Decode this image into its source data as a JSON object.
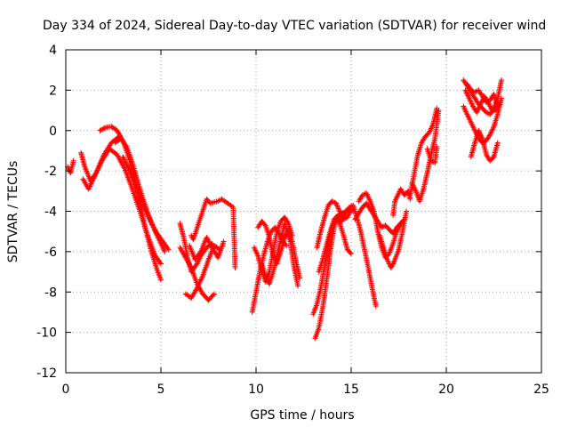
{
  "chart_data": {
    "type": "scatter",
    "title": "Day 334 of 2024, Sidereal Day-to-day VTEC variation (SDTVAR) for receiver wind",
    "xlabel": "GPS time / hours",
    "ylabel": "SDTVAR / TECUs",
    "xlim": [
      0,
      25
    ],
    "ylim": [
      -12,
      4
    ],
    "xticks": [
      "0",
      "5",
      "10",
      "15",
      "20",
      "25"
    ],
    "yticks": [
      "4",
      "2",
      "0",
      "-2",
      "-4",
      "-6",
      "-8",
      "-10",
      "-12"
    ],
    "grid": true,
    "marker": "+",
    "color": "#ff0000",
    "segments": [
      {
        "x": [
          0.1,
          0.25,
          0.4
        ],
        "y": [
          -1.8,
          -2.1,
          -1.5
        ]
      },
      {
        "x": [
          0.8,
          1.0,
          1.3,
          1.6,
          2.0,
          2.4,
          2.8
        ],
        "y": [
          -1.1,
          -1.8,
          -2.5,
          -2.1,
          -1.2,
          -0.6,
          -0.3
        ]
      },
      {
        "x": [
          0.9,
          1.2,
          1.5,
          1.9,
          2.3,
          2.7,
          3.1,
          3.5,
          3.9,
          4.3,
          4.7,
          5.0
        ],
        "y": [
          -2.4,
          -2.9,
          -2.3,
          -1.5,
          -0.9,
          -1.2,
          -1.9,
          -2.9,
          -4.0,
          -5.2,
          -6.2,
          -6.6
        ]
      },
      {
        "x": [
          1.8,
          2.1,
          2.4,
          2.7,
          3.0,
          3.3,
          3.6,
          3.9,
          4.2,
          4.5,
          4.8,
          5.0
        ],
        "y": [
          0.0,
          0.15,
          0.2,
          0.0,
          -0.5,
          -1.3,
          -2.3,
          -3.6,
          -4.9,
          -6.0,
          -6.9,
          -7.4
        ]
      },
      {
        "x": [
          2.6,
          2.9,
          3.2,
          3.5,
          3.8,
          4.1,
          4.4,
          4.7,
          5.0,
          5.2
        ],
        "y": [
          -0.6,
          -0.4,
          -0.8,
          -1.6,
          -2.6,
          -3.5,
          -4.3,
          -5.0,
          -5.6,
          -6.0
        ]
      },
      {
        "x": [
          3.0,
          3.3,
          3.6,
          3.9,
          4.2,
          4.5,
          4.8,
          5.1,
          5.4
        ],
        "y": [
          -1.3,
          -1.9,
          -2.6,
          -3.3,
          -4.0,
          -4.6,
          -5.1,
          -5.5,
          -5.9
        ]
      },
      {
        "x": [
          6.0,
          6.2,
          6.4,
          6.6,
          6.9,
          7.1,
          7.4,
          7.7
        ],
        "y": [
          -4.6,
          -5.3,
          -6.3,
          -7.0,
          -6.6,
          -6.2,
          -5.8,
          -5.6
        ]
      },
      {
        "x": [
          6.0,
          6.3,
          6.6,
          6.9,
          7.2,
          7.5,
          7.8
        ],
        "y": [
          -5.8,
          -6.3,
          -6.8,
          -7.6,
          -8.1,
          -8.4,
          -8.1
        ]
      },
      {
        "x": [
          6.3,
          6.6,
          6.9,
          7.2,
          7.5,
          7.8,
          8.1
        ],
        "y": [
          -8.1,
          -8.3,
          -7.8,
          -7.2,
          -6.4,
          -5.7,
          -5.9
        ]
      },
      {
        "x": [
          6.5,
          6.8,
          7.1,
          7.4,
          7.7,
          8.0,
          8.3
        ],
        "y": [
          -5.7,
          -6.4,
          -6.0,
          -5.3,
          -5.8,
          -6.3,
          -5.5
        ]
      },
      {
        "x": [
          6.6,
          6.7,
          7.4,
          7.6,
          8.0,
          8.2,
          8.8,
          8.9
        ],
        "y": [
          -5.2,
          -5.4,
          -3.4,
          -3.6,
          -3.5,
          -3.4,
          -3.8,
          -6.8
        ]
      },
      {
        "x": [
          9.8,
          10.0,
          10.2,
          10.4,
          10.6,
          10.8,
          11.0,
          11.2,
          11.4,
          11.6
        ],
        "y": [
          -9.0,
          -8.0,
          -7.0,
          -6.2,
          -5.5,
          -5.0,
          -4.8,
          -5.1,
          -5.5,
          -5.7
        ]
      },
      {
        "x": [
          9.9,
          10.1,
          10.3,
          10.5,
          10.7,
          10.9,
          11.1,
          11.3,
          11.5,
          11.7,
          11.9
        ],
        "y": [
          -5.8,
          -6.2,
          -6.9,
          -7.5,
          -7.0,
          -6.0,
          -5.0,
          -4.5,
          -4.3,
          -4.6,
          -5.2
        ]
      },
      {
        "x": [
          10.1,
          10.3,
          10.5,
          10.7,
          10.9,
          11.1,
          11.3,
          11.5,
          11.7,
          11.9,
          12.1,
          12.3
        ],
        "y": [
          -4.8,
          -4.5,
          -4.7,
          -5.3,
          -6.2,
          -6.6,
          -6.0,
          -5.3,
          -4.9,
          -5.5,
          -6.5,
          -7.3
        ]
      },
      {
        "x": [
          10.3,
          10.5,
          10.7,
          10.9,
          11.2,
          11.5,
          11.8,
          12.0,
          12.2
        ],
        "y": [
          -6.6,
          -7.2,
          -7.6,
          -7.0,
          -5.8,
          -4.6,
          -5.5,
          -6.8,
          -7.7
        ]
      },
      {
        "x": [
          13.1,
          13.3,
          13.5,
          13.7,
          13.9,
          14.1,
          14.3,
          14.5,
          14.7,
          14.9,
          15.1
        ],
        "y": [
          -10.3,
          -9.8,
          -8.8,
          -7.5,
          -6.0,
          -4.8,
          -4.2,
          -4.1,
          -4.0,
          -3.9,
          -4.0
        ]
      },
      {
        "x": [
          13.0,
          13.2,
          13.4,
          13.6,
          13.8,
          14.0,
          14.2,
          14.4,
          14.6,
          14.8,
          15.0
        ],
        "y": [
          -9.1,
          -8.6,
          -7.8,
          -6.7,
          -5.6,
          -4.8,
          -4.4,
          -4.6,
          -5.2,
          -5.9,
          -6.1
        ]
      },
      {
        "x": [
          13.2,
          13.4,
          13.6,
          13.8,
          14.0,
          14.2,
          14.4,
          14.6,
          14.8,
          15.0
        ],
        "y": [
          -5.8,
          -5.0,
          -4.3,
          -3.7,
          -3.5,
          -3.6,
          -4.0,
          -4.4,
          -4.3,
          -3.9
        ]
      },
      {
        "x": [
          13.3,
          13.5,
          13.7,
          13.9,
          14.1,
          14.3,
          14.5,
          14.7,
          14.9,
          15.1,
          15.3,
          15.5,
          15.7,
          15.9,
          16.1,
          16.3
        ],
        "y": [
          -7.0,
          -6.4,
          -5.7,
          -5.0,
          -4.4,
          -4.2,
          -4.5,
          -4.1,
          -3.8,
          -3.7,
          -4.3,
          -5.0,
          -5.9,
          -6.8,
          -7.8,
          -8.7
        ]
      },
      {
        "x": [
          15.2,
          15.4,
          15.6,
          15.8,
          16.0,
          16.2,
          16.4,
          16.6,
          16.8,
          17.0,
          17.2,
          17.4,
          17.6,
          17.8
        ],
        "y": [
          -4.4,
          -4.1,
          -3.8,
          -3.6,
          -3.9,
          -4.2,
          -4.5,
          -4.8,
          -4.7,
          -4.9,
          -5.1,
          -4.8,
          -4.6,
          -4.4
        ]
      },
      {
        "x": [
          15.4,
          15.6,
          15.8,
          16.0,
          16.2,
          16.4,
          16.6,
          16.8,
          17.0,
          17.2,
          17.4,
          17.6
        ],
        "y": [
          -3.5,
          -3.2,
          -3.1,
          -3.5,
          -4.0,
          -5.0,
          -5.8,
          -6.3,
          -6.1,
          -5.6,
          -5.0,
          -4.6
        ]
      },
      {
        "x": [
          16.5,
          16.7,
          16.9,
          17.1,
          17.3,
          17.5,
          17.7,
          17.9
        ],
        "y": [
          -5.2,
          -5.8,
          -6.4,
          -6.8,
          -6.4,
          -5.9,
          -5.0,
          -4.0
        ]
      },
      {
        "x": [
          17.2,
          17.3,
          17.6,
          17.8,
          18.0,
          18.1
        ],
        "y": [
          -4.2,
          -3.5,
          -2.9,
          -3.2,
          -3.0,
          -3.4
        ]
      },
      {
        "x": [
          18.1,
          18.3,
          18.5,
          18.7,
          18.9,
          19.1,
          19.3,
          19.5
        ],
        "y": [
          -3.2,
          -2.2,
          -1.2,
          -0.6,
          -0.3,
          -0.1,
          0.3,
          1.1
        ]
      },
      {
        "x": [
          18.2,
          18.4,
          18.6,
          18.8,
          19.0,
          19.2,
          19.4,
          19.6
        ],
        "y": [
          -2.6,
          -3.0,
          -3.5,
          -2.9,
          -2.1,
          -1.2,
          -0.4,
          1.0
        ]
      },
      {
        "x": [
          19.0,
          19.2,
          19.4,
          19.5
        ],
        "y": [
          -0.9,
          -1.5,
          -1.6,
          -0.8
        ]
      },
      {
        "x": [
          20.9,
          21.1,
          21.3,
          21.5,
          21.7,
          21.9,
          22.1,
          22.3,
          22.5,
          22.7,
          22.9
        ],
        "y": [
          2.5,
          2.2,
          1.9,
          1.6,
          1.3,
          1.1,
          0.9,
          0.8,
          1.1,
          1.6,
          2.5
        ]
      },
      {
        "x": [
          20.9,
          21.1,
          21.3,
          21.5,
          21.7,
          21.9,
          22.1,
          22.3,
          22.5,
          22.7,
          22.9
        ],
        "y": [
          1.2,
          0.8,
          0.4,
          0.0,
          -0.4,
          -0.6,
          -0.5,
          -0.2,
          0.2,
          0.8,
          1.6
        ]
      },
      {
        "x": [
          21.0,
          21.2,
          21.4,
          21.6,
          21.8,
          22.0,
          22.2,
          22.4,
          22.6,
          22.8
        ],
        "y": [
          2.0,
          1.6,
          1.2,
          0.9,
          1.3,
          1.7,
          1.4,
          1.0,
          1.0,
          1.3
        ]
      },
      {
        "x": [
          21.3,
          21.5,
          21.7,
          21.9,
          22.1,
          22.3,
          22.5,
          22.7
        ],
        "y": [
          -1.3,
          -0.6,
          0.0,
          -0.4,
          -1.2,
          -1.5,
          -1.3,
          -0.6
        ]
      },
      {
        "x": [
          21.1,
          21.3,
          21.5,
          21.7,
          21.9,
          22.1,
          22.3,
          22.5,
          22.7
        ],
        "y": [
          2.3,
          2.0,
          1.9,
          2.0,
          1.7,
          1.4,
          1.5,
          1.8,
          1.2
        ]
      }
    ]
  }
}
